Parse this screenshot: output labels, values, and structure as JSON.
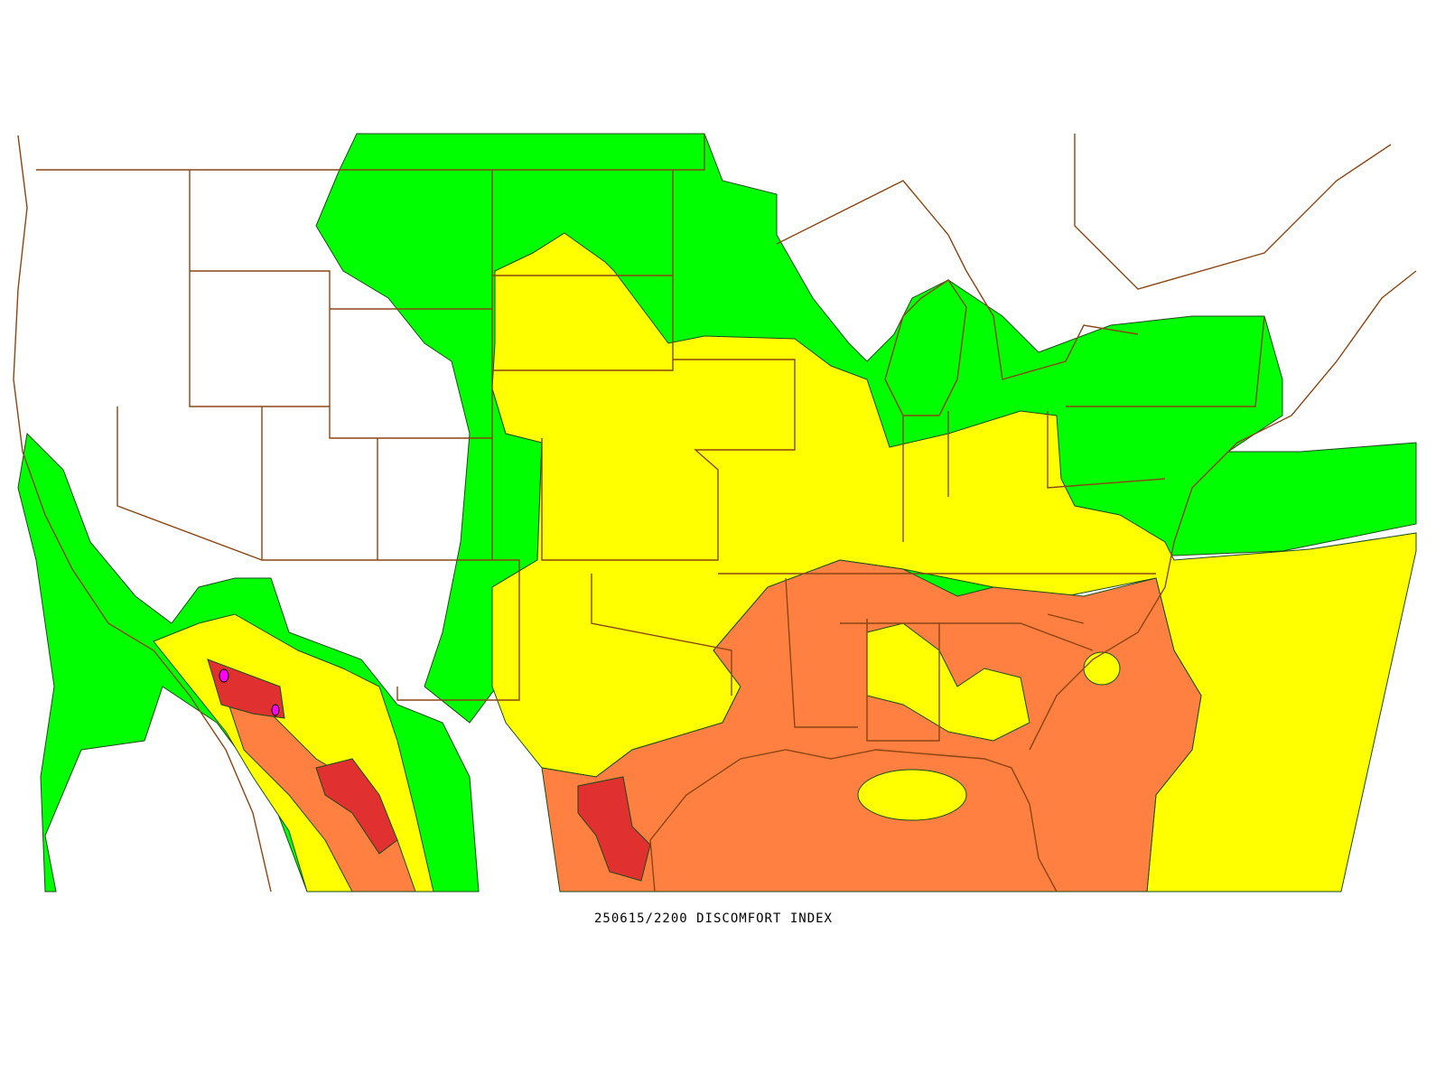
{
  "caption": "250615/2200 DISCOMFORT INDEX"
}
